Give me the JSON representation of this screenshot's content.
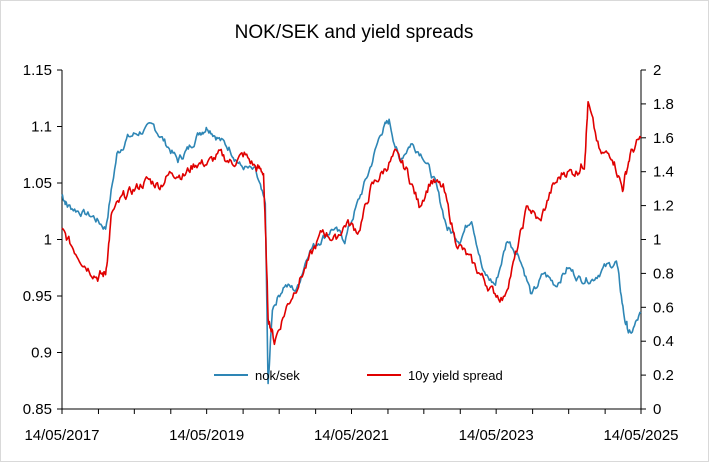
{
  "chart_data": {
    "type": "line",
    "title": "NOK/SEK and yield spreads",
    "xlabel": "",
    "ylabel": "",
    "y2label": "",
    "x_ticks": [
      "14/05/2017",
      "14/05/2019",
      "14/05/2021",
      "14/05/2023",
      "14/05/2025"
    ],
    "y_ticks": [
      "0.85",
      "0.9",
      "0.95",
      "1",
      "1.05",
      "1.1",
      "1.15"
    ],
    "y2_ticks": [
      "0",
      "0.2",
      "0.4",
      "0.6",
      "0.8",
      "1",
      "1.2",
      "1.4",
      "1.6",
      "1.8",
      "2"
    ],
    "ylim": [
      0.85,
      1.15
    ],
    "y2lim": [
      0,
      2
    ],
    "xlim": [
      "2017-05-14",
      "2025-05-14"
    ],
    "grid": false,
    "legend_position": "bottom-inside",
    "series": [
      {
        "name": "nok/sek",
        "axis": "left",
        "color": "#2e86b5",
        "x": [
          "2017-05-14",
          "2017-06-10",
          "2017-08-10",
          "2017-10-20",
          "2017-12-20",
          "2018-02-15",
          "2018-04-10",
          "2018-06-10",
          "2018-08-20",
          "2018-10-20",
          "2018-12-20",
          "2019-02-10",
          "2019-04-10",
          "2019-05-20",
          "2019-07-10",
          "2019-09-10",
          "2019-11-01",
          "2020-01-15",
          "2020-03-05",
          "2020-03-19",
          "2020-04-10",
          "2020-06-10",
          "2020-08-10",
          "2020-10-10",
          "2020-12-10",
          "2021-02-10",
          "2021-04-10",
          "2021-06-10",
          "2021-08-10",
          "2021-10-10",
          "2021-11-20",
          "2022-01-10",
          "2022-03-10",
          "2022-05-10",
          "2022-07-10",
          "2022-09-10",
          "2022-11-10",
          "2023-01-10",
          "2023-03-10",
          "2023-05-10",
          "2023-07-10",
          "2023-09-10",
          "2023-11-10",
          "2024-01-10",
          "2024-03-10",
          "2024-05-10",
          "2024-07-10",
          "2024-09-10",
          "2024-11-10",
          "2025-01-10",
          "2025-02-20",
          "2025-03-20",
          "2025-05-14"
        ],
        "values": [
          1.04,
          1.03,
          1.025,
          1.02,
          1.01,
          1.075,
          1.09,
          1.095,
          1.1,
          1.085,
          1.07,
          1.08,
          1.095,
          1.1,
          1.09,
          1.08,
          1.065,
          1.06,
          1.03,
          0.87,
          0.94,
          0.96,
          0.955,
          0.99,
          1.0,
          1.01,
          1.0,
          1.03,
          1.06,
          1.095,
          1.105,
          1.07,
          1.085,
          1.075,
          1.05,
          1.01,
          1.0,
          1.02,
          0.97,
          0.96,
          1.0,
          0.985,
          0.95,
          0.97,
          0.96,
          0.975,
          0.965,
          0.965,
          0.975,
          0.98,
          0.93,
          0.915,
          0.935
        ]
      },
      {
        "name": "10y yield spread",
        "axis": "right",
        "color": "#e00000",
        "x": [
          "2017-05-14",
          "2017-07-10",
          "2017-09-10",
          "2017-11-10",
          "2017-12-20",
          "2018-01-20",
          "2018-03-20",
          "2018-05-20",
          "2018-07-20",
          "2018-09-20",
          "2018-11-20",
          "2019-01-20",
          "2019-03-20",
          "2019-05-20",
          "2019-07-20",
          "2019-09-20",
          "2019-11-20",
          "2020-01-20",
          "2020-02-25",
          "2020-03-19",
          "2020-04-20",
          "2020-06-20",
          "2020-08-20",
          "2020-10-20",
          "2020-12-20",
          "2021-02-20",
          "2021-04-20",
          "2021-06-20",
          "2021-08-20",
          "2021-10-20",
          "2021-12-20",
          "2022-02-20",
          "2022-04-20",
          "2022-06-20",
          "2022-08-20",
          "2022-10-20",
          "2022-12-20",
          "2023-02-20",
          "2023-04-20",
          "2023-06-20",
          "2023-08-20",
          "2023-10-20",
          "2023-12-20",
          "2024-02-20",
          "2024-04-20",
          "2024-06-20",
          "2024-08-01",
          "2024-08-20",
          "2024-10-20",
          "2024-12-20",
          "2025-02-10",
          "2025-03-20",
          "2025-05-14"
        ],
        "values": [
          1.05,
          0.95,
          0.85,
          0.78,
          0.8,
          1.15,
          1.25,
          1.3,
          1.35,
          1.32,
          1.4,
          1.38,
          1.45,
          1.45,
          1.5,
          1.45,
          1.5,
          1.42,
          1.4,
          0.55,
          0.4,
          0.6,
          0.75,
          0.9,
          1.05,
          1.0,
          1.1,
          1.05,
          1.3,
          1.4,
          1.5,
          1.4,
          1.2,
          1.35,
          1.3,
          1.0,
          0.9,
          0.8,
          0.7,
          0.65,
          0.9,
          1.2,
          1.1,
          1.3,
          1.4,
          1.4,
          1.45,
          1.8,
          1.5,
          1.5,
          1.3,
          1.5,
          1.6
        ]
      }
    ]
  }
}
